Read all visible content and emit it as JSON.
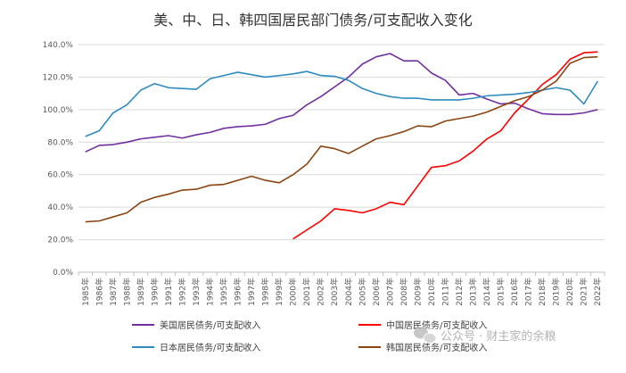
{
  "chart_data": {
    "type": "line",
    "title": "美、中、日、韩四国居民部门债务/可支配收入变化",
    "xlabel": "",
    "ylabel": "",
    "ylim": [
      0,
      1.4
    ],
    "yticks": [
      "0.0%",
      "20.0%",
      "40.0%",
      "60.0%",
      "80.0%",
      "100.0%",
      "120.0%",
      "140.0%"
    ],
    "grid": true,
    "legend_position": "bottom",
    "categories": [
      "1985年",
      "1986年",
      "1987年",
      "1988年",
      "1989年",
      "1990年",
      "1991年",
      "1992年",
      "1993年",
      "1994年",
      "1995年",
      "1996年",
      "1997年",
      "1998年",
      "1999年",
      "2000年",
      "2001年",
      "2002年",
      "2003年",
      "2004年",
      "2005年",
      "2006年",
      "2007年",
      "2008年",
      "2009年",
      "2010年",
      "2011年",
      "2012年",
      "2013年",
      "2014年",
      "2015年",
      "2016年",
      "2017年",
      "2018年",
      "2019年",
      "2020年",
      "2021年",
      "2022年"
    ],
    "series": [
      {
        "name": "美国居民债务/可支配收入",
        "color": "#7030a0",
        "values": [
          0.74,
          0.78,
          0.785,
          0.8,
          0.82,
          0.83,
          0.84,
          0.825,
          0.845,
          0.86,
          0.885,
          0.895,
          0.9,
          0.91,
          0.945,
          0.965,
          1.03,
          1.08,
          1.14,
          1.2,
          1.28,
          1.325,
          1.345,
          1.3,
          1.3,
          1.225,
          1.18,
          1.09,
          1.1,
          1.065,
          1.035,
          1.04,
          1.005,
          0.975,
          0.97,
          0.97,
          0.98,
          1.0
        ]
      },
      {
        "name": "中国居民债务/可支配收入",
        "color": "#ff0000",
        "values": [
          null,
          null,
          null,
          null,
          null,
          null,
          null,
          null,
          null,
          null,
          null,
          null,
          null,
          null,
          null,
          0.205,
          0.26,
          0.315,
          0.39,
          0.38,
          0.365,
          0.39,
          0.43,
          0.415,
          0.53,
          0.645,
          0.655,
          0.685,
          0.745,
          0.82,
          0.87,
          0.98,
          1.065,
          1.155,
          1.215,
          1.31,
          1.35,
          1.355
        ]
      },
      {
        "name": "日本居民债务/可支配收入",
        "color": "#2e8bc0",
        "values": [
          0.835,
          0.87,
          0.98,
          1.03,
          1.12,
          1.16,
          1.135,
          1.13,
          1.125,
          1.19,
          1.21,
          1.23,
          1.215,
          1.2,
          1.21,
          1.22,
          1.235,
          1.21,
          1.205,
          1.18,
          1.13,
          1.1,
          1.08,
          1.07,
          1.07,
          1.06,
          1.06,
          1.06,
          1.07,
          1.085,
          1.09,
          1.095,
          1.105,
          1.12,
          1.135,
          1.12,
          1.035,
          1.175
        ]
      },
      {
        "name": "韩国居民债务/可支配收入",
        "color": "#8b4513",
        "values": [
          0.31,
          0.315,
          0.34,
          0.365,
          0.43,
          0.46,
          0.48,
          0.505,
          0.51,
          0.535,
          0.54,
          0.565,
          0.59,
          0.565,
          0.55,
          0.6,
          0.665,
          0.775,
          0.76,
          0.73,
          0.775,
          0.82,
          0.84,
          0.865,
          0.9,
          0.895,
          0.93,
          0.945,
          0.96,
          0.985,
          1.02,
          1.055,
          1.08,
          1.12,
          1.175,
          1.285,
          1.32,
          1.325
        ]
      }
    ]
  },
  "watermark": {
    "text": "公众号 · 财主家的余粮",
    "icon": "wechat-icon"
  }
}
